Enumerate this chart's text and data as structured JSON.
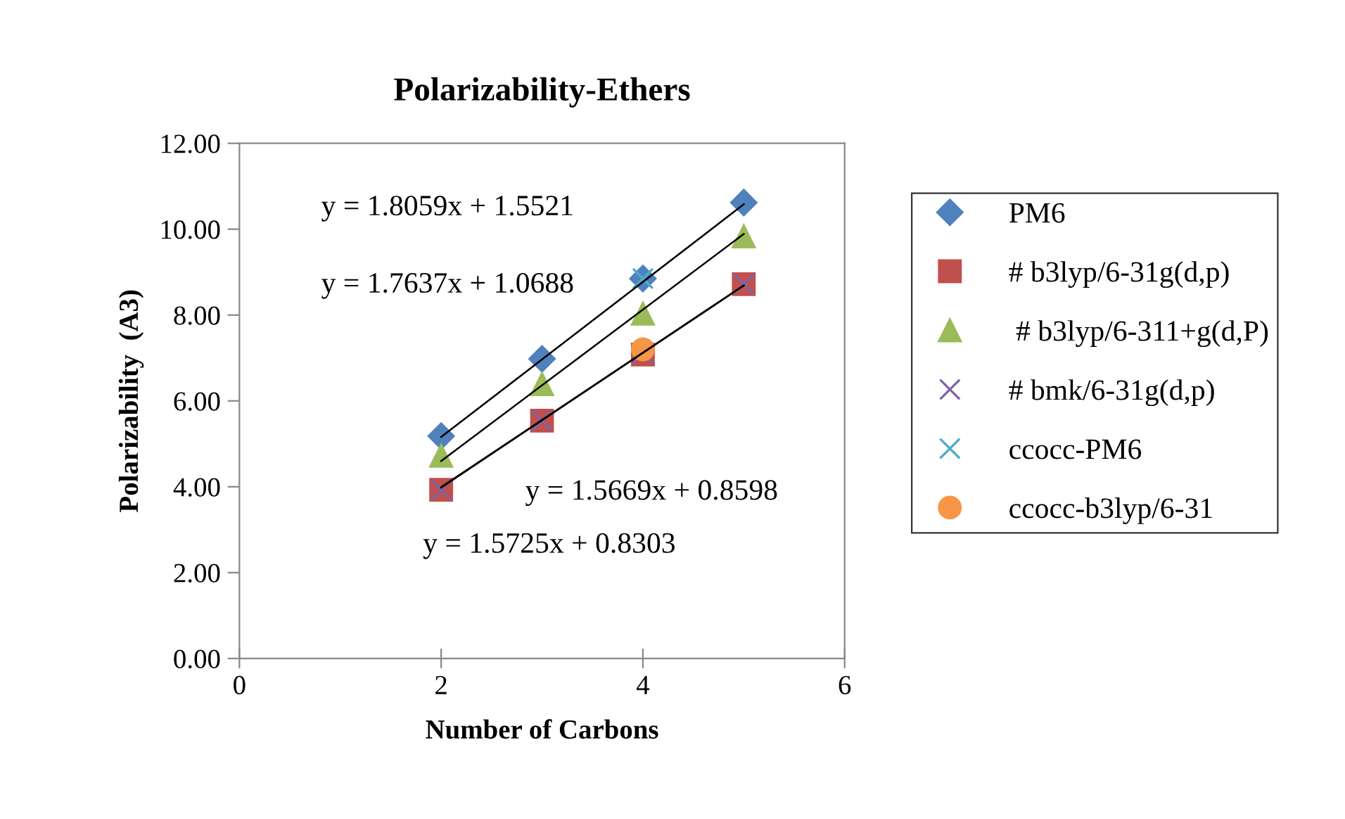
{
  "chart_data": {
    "type": "scatter",
    "title": "Polarizability-Ethers",
    "xlabel": "Number of Carbons",
    "ylabel": "Polarizability  (A3)",
    "xlim": [
      0,
      6
    ],
    "xticks": [
      0,
      2,
      4,
      6
    ],
    "ylim": [
      0,
      12
    ],
    "yticks": [
      {
        "value": 0,
        "label": "0.00"
      },
      {
        "value": 2,
        "label": "2.00"
      },
      {
        "value": 4,
        "label": "4.00"
      },
      {
        "value": 6,
        "label": "6.00"
      },
      {
        "value": 8,
        "label": "8.00"
      },
      {
        "value": 10,
        "label": "10.00"
      },
      {
        "value": 12,
        "label": "12.00"
      }
    ],
    "grid": false,
    "legend": "right",
    "series": [
      {
        "name": "PM6",
        "color": "#4f81bd",
        "marker": "diamond",
        "x": [
          2,
          3,
          4,
          5
        ],
        "values": [
          5.18,
          6.98,
          8.85,
          10.62
        ]
      },
      {
        "name": "# b3lyp/6-31g(d,p)",
        "color": "#c0504d",
        "marker": "square",
        "x": [
          2,
          3,
          4,
          5
        ],
        "values": [
          3.93,
          5.54,
          7.08,
          8.72
        ]
      },
      {
        "name": " # b3lyp/6-311+g(d,P)",
        "color": "#9bbb59",
        "marker": "triangle",
        "x": [
          2,
          3,
          4,
          5
        ],
        "values": [
          4.72,
          6.39,
          8.03,
          9.83
        ]
      },
      {
        "name": "# bmk/6-31g(d,p)",
        "color": "#8064a2",
        "marker": "cross",
        "x": [
          2,
          3,
          4,
          5
        ],
        "values": [
          3.93,
          5.54,
          7.1,
          8.72
        ]
      },
      {
        "name": "ccocc-PM6",
        "color": "#4bacc6",
        "marker": "cross",
        "x": [
          4
        ],
        "values": [
          8.85
        ]
      },
      {
        "name": "ccocc-b3lyp/6-31",
        "color": "#f79646",
        "marker": "circle",
        "x": [
          4
        ],
        "values": [
          7.2
        ]
      },
      {
        "type": "line",
        "color": "#000000",
        "marker": "none",
        "x": [
          2,
          5
        ],
        "values": [
          5.16,
          10.58
        ]
      },
      {
        "type": "line",
        "color": "#000000",
        "marker": "none",
        "x": [
          2,
          5
        ],
        "values": [
          4.6,
          9.89
        ]
      },
      {
        "type": "line",
        "color": "#000000",
        "marker": "none",
        "x": [
          2,
          5
        ],
        "values": [
          3.99,
          8.69
        ]
      },
      {
        "type": "line",
        "color": "#000000",
        "marker": "none",
        "x": [
          2,
          5
        ],
        "values": [
          3.98,
          8.69
        ]
      }
    ],
    "annotations": [
      "y = 1.8059x + 1.5521",
      "y = 1.7637x + 1.0688",
      "y = 1.5669x + 0.8598",
      "y = 1.5725x + 0.8303"
    ]
  }
}
